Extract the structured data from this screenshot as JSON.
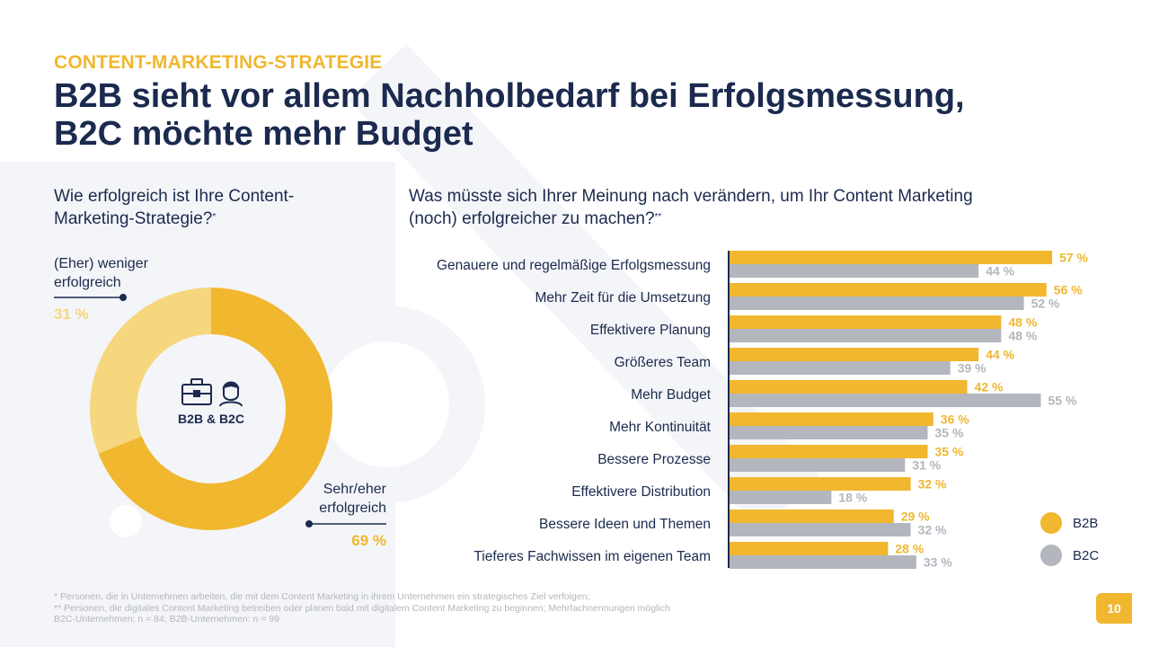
{
  "header": {
    "eyebrow": "CONTENT-MARKETING-STRATEGIE",
    "headline_line1": "B2B sieht vor allem Nachholbedarf bei Erfolgsmessung,",
    "headline_line2": "B2C möchte mehr Budget"
  },
  "left_panel": {
    "question": "Wie erfolgreich ist Ihre Content-Marketing-Strategie?",
    "question_mark": "*",
    "center_label": "B2B & B2C",
    "less_label_line1": "(Eher) weniger",
    "less_label_line2": "erfolgreich",
    "less_pct": "31 %",
    "more_label_line1": "Sehr/eher",
    "more_label_line2": "erfolgreich",
    "more_pct": "69 %"
  },
  "right_panel": {
    "question_line1": "Was müsste sich Ihrer Meinung nach verändern, um Ihr Content Marketing",
    "question_line2": "(noch) erfolgreicher zu machen?",
    "question_mark": "**"
  },
  "legend": {
    "b2b": "B2B",
    "b2c": "B2C"
  },
  "footnotes": {
    "line1": "* Personen, die in Unternehmen arbeiten, die mit dem Content Marketing in ihrem Unternehmen ein strategisches Ziel verfolgen;",
    "line2": "** Personen, die digitales Content Marketing betreiben oder planen bald mit digitalem Content Marketing zu beginnen; Mehrfachnennungen möglich",
    "line3": "B2C-Unternehmen: n = 84; B2B-Unternehmen: n = 99"
  },
  "page_number": "10",
  "colors": {
    "navy": "#1b2a4e",
    "yellow": "#f0b72f",
    "light_yellow": "#f6d77e",
    "gray": "#b3b6bd"
  },
  "icons": [
    "briefcase-icon",
    "person-icon"
  ],
  "chart_data": [
    {
      "type": "pie",
      "slices": [
        {
          "label": "Sehr/eher erfolgreich",
          "value": 69,
          "color": "#f0b72f"
        },
        {
          "label": "(Eher) weniger erfolgreich",
          "value": 31,
          "color": "#f6d77e"
        }
      ]
    },
    {
      "type": "bar",
      "orientation": "horizontal",
      "categories": [
        "Genauere und regelmäßige Erfolgsmessung",
        "Mehr Zeit für die Umsetzung",
        "Effektivere Planung",
        "Größeres Team",
        "Mehr Budget",
        "Mehr Kontinuität",
        "Bessere Prozesse",
        "Effektivere Distribution",
        "Bessere Ideen und Themen",
        "Tieferes Fachwissen im eigenen Team"
      ],
      "series": [
        {
          "name": "B2B",
          "color": "#f0b72f",
          "values": [
            57,
            56,
            48,
            44,
            42,
            36,
            35,
            32,
            29,
            28
          ]
        },
        {
          "name": "B2C",
          "color": "#b3b6bd",
          "values": [
            44,
            52,
            48,
            39,
            55,
            35,
            31,
            18,
            32,
            33
          ]
        }
      ],
      "value_suffix": " %",
      "xlim": [
        0,
        60
      ]
    }
  ]
}
